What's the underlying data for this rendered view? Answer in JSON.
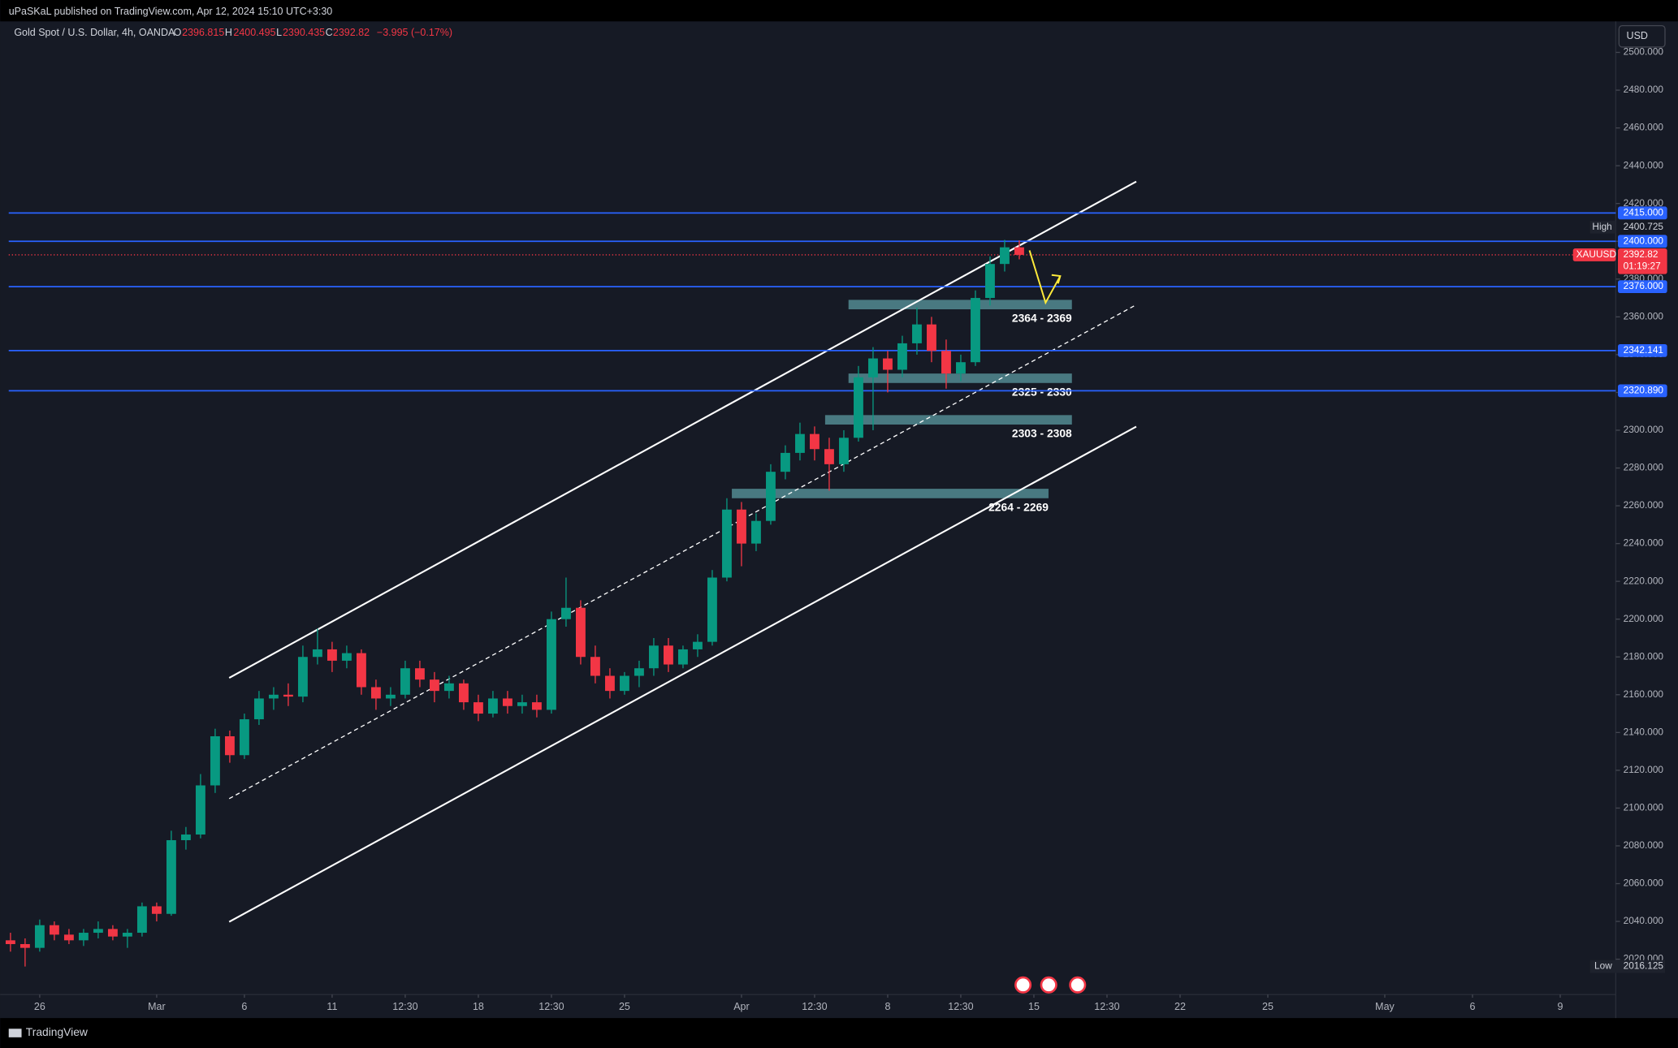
{
  "header": {
    "published": "uPaSKaL published on TradingView.com, Apr 12, 2024 15:10 UTC+3:30",
    "symbol": "Gold Spot / U.S. Dollar, 4h, OANDA",
    "ohlc": {
      "o_label": "O",
      "o": 2396.815,
      "h_label": "H",
      "h": 2400.495,
      "l_label": "L",
      "l": 2390.435,
      "c_label": "C",
      "c": 2392.82,
      "change": "−3.995 (−0.17%)"
    },
    "currency": "USD"
  },
  "footer": {
    "brand": "TradingView"
  },
  "chart_data": {
    "type": "candlestick",
    "up_color": "#089981",
    "down_color": "#f23645",
    "xlim": [
      -1.06,
      53.9
    ],
    "ylim": [
      2001.3,
      2516.4
    ],
    "xticks": [
      {
        "value": 0,
        "label": "26"
      },
      {
        "value": 4,
        "label": "Mar"
      },
      {
        "value": 7,
        "label": "6"
      },
      {
        "value": 10,
        "label": "11"
      },
      {
        "value": 12.5,
        "label": "12:30"
      },
      {
        "value": 15,
        "label": "18"
      },
      {
        "value": 17.5,
        "label": "12:30"
      },
      {
        "value": 20,
        "label": "25"
      },
      {
        "value": 24,
        "label": "Apr"
      },
      {
        "value": 26.5,
        "label": "12:30"
      },
      {
        "value": 29,
        "label": "8"
      },
      {
        "value": 31.5,
        "label": "12:30"
      },
      {
        "value": 34,
        "label": "15"
      },
      {
        "value": 36.5,
        "label": "12:30"
      },
      {
        "value": 39,
        "label": "22"
      },
      {
        "value": 42,
        "label": "25"
      },
      {
        "value": 46,
        "label": "May"
      },
      {
        "value": 49,
        "label": "6"
      },
      {
        "value": 52,
        "label": "9"
      }
    ],
    "yticks": [
      {
        "value": 2020,
        "label": "2020.000"
      },
      {
        "value": 2040,
        "label": "2040.000"
      },
      {
        "value": 2060,
        "label": "2060.000"
      },
      {
        "value": 2080,
        "label": "2080.000"
      },
      {
        "value": 2100,
        "label": "2100.000"
      },
      {
        "value": 2120,
        "label": "2120.000"
      },
      {
        "value": 2140,
        "label": "2140.000"
      },
      {
        "value": 2160,
        "label": "2160.000"
      },
      {
        "value": 2180,
        "label": "2180.000"
      },
      {
        "value": 2200,
        "label": "2200.000"
      },
      {
        "value": 2220,
        "label": "2220.000"
      },
      {
        "value": 2240,
        "label": "2240.000"
      },
      {
        "value": 2260,
        "label": "2260.000"
      },
      {
        "value": 2280,
        "label": "2280.000"
      },
      {
        "value": 2300,
        "label": "2300.000"
      },
      {
        "value": 2320,
        "label": "2320.000"
      },
      {
        "value": 2340,
        "label": "2340.000"
      },
      {
        "value": 2360,
        "label": "2360.000"
      },
      {
        "value": 2380,
        "label": "2380.000"
      },
      {
        "value": 2400,
        "label": "2400.000"
      },
      {
        "value": 2420,
        "label": "2420.000"
      },
      {
        "value": 2440,
        "label": "2440.000"
      },
      {
        "value": 2460,
        "label": "2460.000"
      },
      {
        "value": 2480,
        "label": "2480.000"
      },
      {
        "value": 2500,
        "label": "2500.000"
      }
    ],
    "x": [
      -1,
      -0.5,
      0,
      0.5,
      1,
      1.5,
      2,
      2.5,
      3,
      3.5,
      4,
      4.5,
      5,
      5.5,
      6,
      6.5,
      7,
      7.5,
      8,
      8.5,
      9,
      9.5,
      10,
      10.5,
      11,
      11.5,
      12,
      12.5,
      13,
      13.5,
      14,
      14.5,
      15,
      15.5,
      16,
      16.5,
      17,
      17.5,
      18,
      18.5,
      19,
      19.5,
      20,
      20.5,
      21,
      21.5,
      22,
      22.5,
      23,
      23.5,
      24,
      24.5,
      25,
      25.5,
      26,
      26.5,
      27,
      27.5,
      28,
      28.5,
      29,
      29.5,
      30,
      30.5,
      31,
      31.5,
      32,
      32.5,
      33,
      33.5
    ],
    "open": [
      2030,
      2028,
      2026,
      2038,
      2033,
      2030,
      2034,
      2036,
      2032,
      2034,
      2048,
      2044,
      2083,
      2086,
      2112,
      2138,
      2128,
      2147,
      2158,
      2160,
      2159,
      2180,
      2184,
      2178,
      2182,
      2164,
      2158,
      2160,
      2174,
      2168,
      2162,
      2166,
      2156,
      2150,
      2158,
      2154,
      2156,
      2152,
      2200,
      2206,
      2180,
      2170,
      2162,
      2170,
      2174,
      2186,
      2176,
      2184,
      2188,
      2222,
      2258,
      2240,
      2252,
      2278,
      2288,
      2298,
      2290,
      2282,
      2296,
      2328,
      2338,
      2332,
      2346,
      2356,
      2342,
      2330,
      2336,
      2370,
      2388,
      2396.815
    ],
    "high": [
      2034,
      2031,
      2041,
      2040,
      2036,
      2036,
      2040,
      2038,
      2036,
      2050,
      2050,
      2088,
      2090,
      2118,
      2142,
      2141,
      2150,
      2162,
      2164,
      2166,
      2186,
      2195,
      2188,
      2186,
      2184,
      2168,
      2164,
      2178,
      2178,
      2172,
      2170,
      2168,
      2160,
      2162,
      2162,
      2160,
      2160,
      2204,
      2222,
      2210,
      2186,
      2174,
      2172,
      2178,
      2190,
      2190,
      2186,
      2192,
      2226,
      2264,
      2262,
      2256,
      2282,
      2292,
      2304,
      2302,
      2296,
      2300,
      2334,
      2344,
      2342,
      2350,
      2365,
      2360,
      2348,
      2340,
      2374,
      2392,
      2400.725,
      2400.495
    ],
    "low": [
      2024,
      2016.125,
      2024,
      2030,
      2028,
      2027,
      2031,
      2030,
      2026,
      2032,
      2040,
      2043,
      2078,
      2084,
      2108,
      2124,
      2126,
      2144,
      2152,
      2154,
      2156,
      2176,
      2172,
      2174,
      2160,
      2152,
      2154,
      2158,
      2164,
      2156,
      2158,
      2152,
      2146,
      2148,
      2150,
      2150,
      2148,
      2150,
      2196,
      2176,
      2166,
      2158,
      2160,
      2164,
      2170,
      2172,
      2174,
      2180,
      2186,
      2220,
      2228,
      2236,
      2250,
      2274,
      2284,
      2284,
      2268,
      2278,
      2294,
      2300,
      2320,
      2328,
      2340,
      2336,
      2322,
      2326,
      2334,
      2366,
      2384,
      2390.435
    ],
    "close": [
      2028,
      2026,
      2038,
      2033,
      2030,
      2034,
      2036,
      2032,
      2034,
      2048,
      2044,
      2083,
      2086,
      2112,
      2138,
      2128,
      2147,
      2158,
      2160,
      2159,
      2180,
      2184,
      2178,
      2182,
      2164,
      2158,
      2160,
      2174,
      2168,
      2162,
      2166,
      2156,
      2150,
      2158,
      2154,
      2156,
      2152,
      2200,
      2206,
      2180,
      2170,
      2162,
      2170,
      2174,
      2186,
      2176,
      2184,
      2188,
      2222,
      2258,
      2240,
      2252,
      2278,
      2288,
      2298,
      2290,
      2282,
      2296,
      2328,
      2338,
      2332,
      2346,
      2356,
      2342,
      2330,
      2336,
      2370,
      2388,
      2396.815,
      2392.82
    ],
    "levels": [
      {
        "value": 2415,
        "label": "2415.000"
      },
      {
        "value": 2400,
        "label": "2400.000"
      },
      {
        "value": 2376,
        "label": "2376.000"
      },
      {
        "value": 2342.141,
        "label": "2342.141"
      },
      {
        "value": 2320.89,
        "label": "2320.890"
      }
    ],
    "level_color": "#2962ff",
    "zones": [
      {
        "label": "2364 - 2369",
        "low": 2364,
        "high": 2369,
        "x": [
          27.66,
          35.3
        ]
      },
      {
        "label": "2325 - 2330",
        "low": 2325,
        "high": 2330,
        "x": [
          27.66,
          35.3
        ]
      },
      {
        "label": "2303 - 2308",
        "low": 2303,
        "high": 2308,
        "x": [
          26.86,
          35.3
        ]
      },
      {
        "label": "2264 - 2269",
        "low": 2264,
        "high": 2269,
        "x": [
          23.67,
          34.5
        ]
      }
    ],
    "channel": [
      {
        "x": [
          6.48,
          37.5
        ],
        "y": [
          2168.9,
          2431.6
        ]
      },
      {
        "x": [
          6.48,
          37.5
        ],
        "y": [
          2039.8,
          2301.9
        ]
      },
      {
        "x": [
          6.48,
          37.5
        ],
        "y": [
          2105,
          2366.4
        ]
      }
    ],
    "arrow": {
      "x": [
        33.85,
        34.4,
        34.9
      ],
      "y": [
        2395.2,
        2367.5,
        2381.6
      ]
    },
    "high_marker": {
      "label": "High",
      "value": 2400.725
    },
    "low_marker": {
      "label": "Low",
      "value": 2016.125
    },
    "last_price": {
      "symbol": "XAUUSD",
      "value": 2392.82,
      "countdown": "01:19:27"
    }
  }
}
